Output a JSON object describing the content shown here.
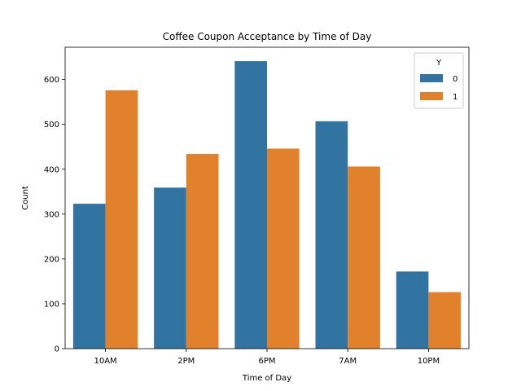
{
  "chart_data": {
    "type": "bar",
    "title": "Coffee Coupon Acceptance by Time of Day",
    "xlabel": "Time of Day",
    "ylabel": "Count",
    "categories": [
      "10AM",
      "2PM",
      "6PM",
      "7AM",
      "10PM"
    ],
    "series": [
      {
        "name": "0",
        "color": "#3274a1",
        "values": [
          323,
          359,
          641,
          507,
          172
        ]
      },
      {
        "name": "1",
        "color": "#e1812c",
        "values": [
          576,
          434,
          446,
          406,
          126
        ]
      }
    ],
    "ylim": [
      0,
      672
    ],
    "yticks": [
      0,
      100,
      200,
      300,
      400,
      500,
      600
    ],
    "legend": {
      "title": "Y",
      "placement": "top-right"
    },
    "grid": false
  }
}
